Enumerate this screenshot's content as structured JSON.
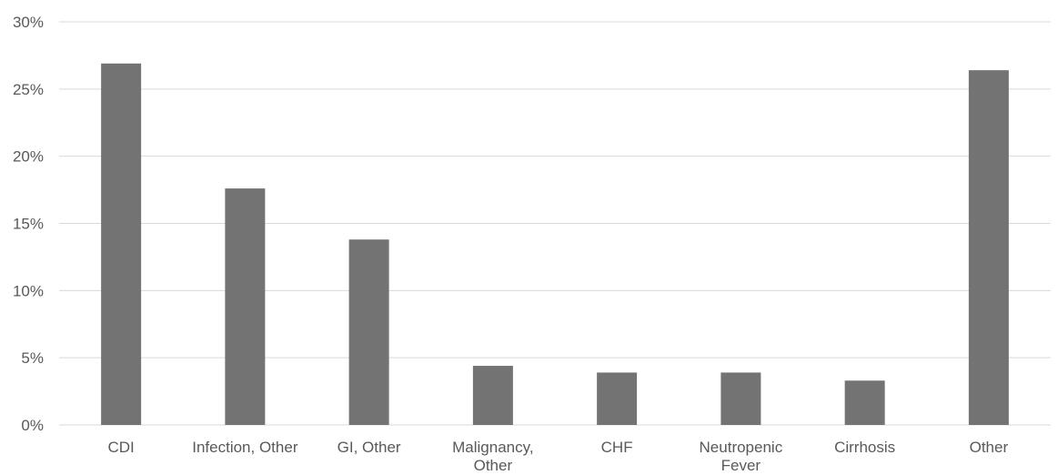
{
  "chart_data": {
    "type": "bar",
    "categories": [
      [
        "CDI"
      ],
      [
        "Infection, Other"
      ],
      [
        "GI, Other"
      ],
      [
        "Malignancy,",
        "Other"
      ],
      [
        "CHF"
      ],
      [
        "Neutropenic",
        "Fever"
      ],
      [
        "Cirrhosis"
      ],
      [
        "Other"
      ]
    ],
    "values": [
      26.9,
      17.6,
      13.8,
      4.4,
      3.9,
      3.9,
      3.3,
      26.4
    ],
    "ylim": [
      0,
      30
    ],
    "yticks": [
      0,
      5,
      10,
      15,
      20,
      25,
      30
    ],
    "ytick_format": "percent",
    "grid": true,
    "bar_color": "#737373",
    "grid_color": "#d9d9d9",
    "label_color": "#595959"
  }
}
